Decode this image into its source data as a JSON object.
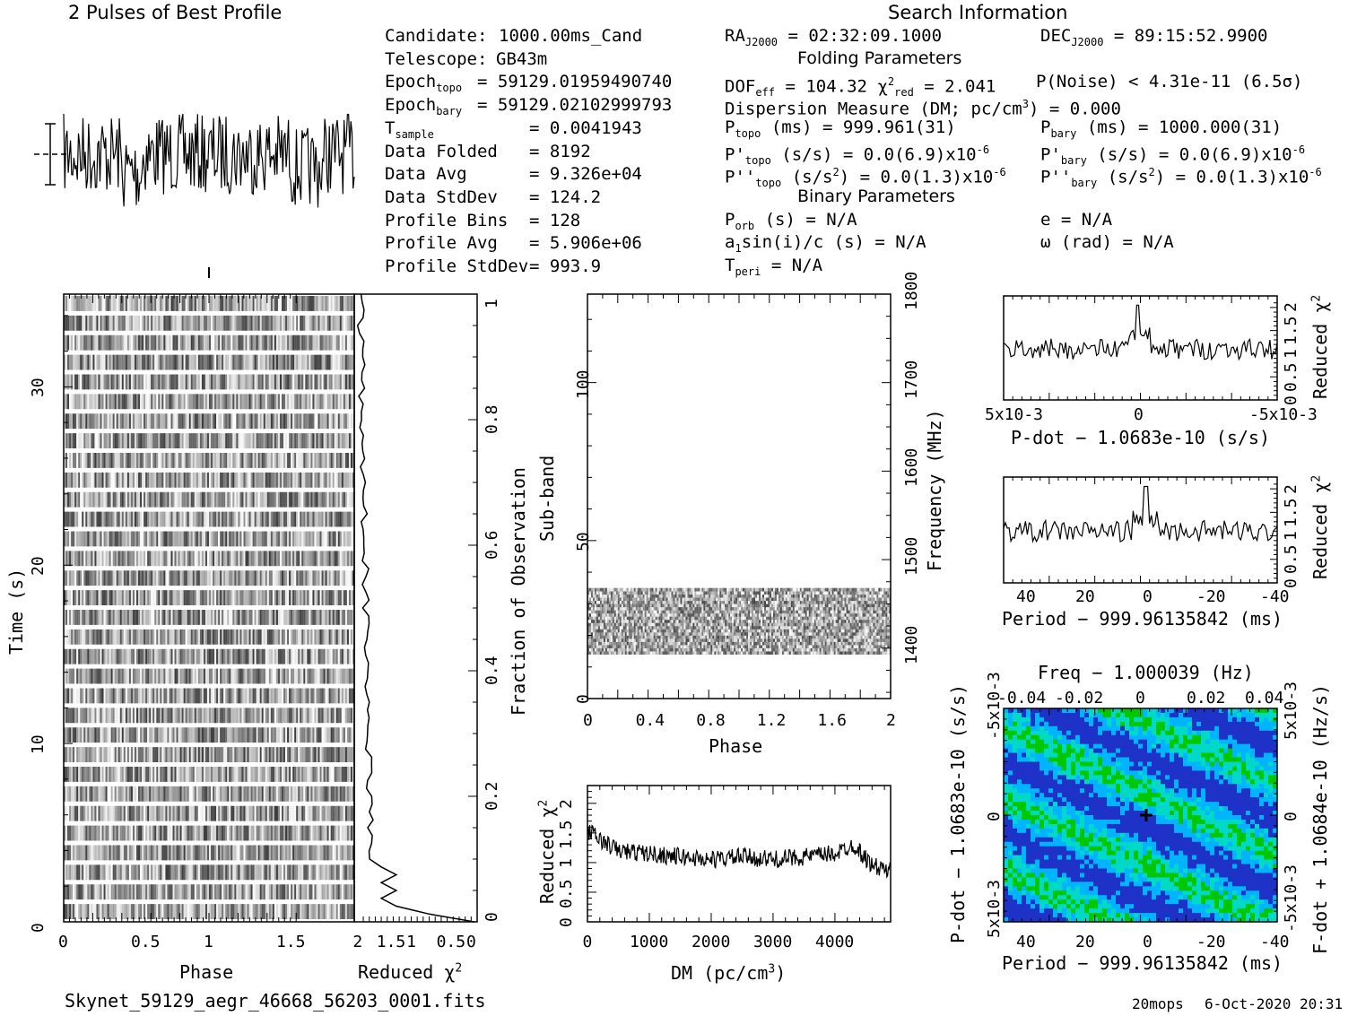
{
  "profile_title": "2 Pulses of Best Profile",
  "search_title": "Search Information",
  "info_col1": [
    {
      "label": "Candidate:",
      "value": "1000.00ms_Cand"
    },
    {
      "label": "Telescope:",
      "value": "GB43m"
    },
    {
      "label": "Epoch",
      "sub": "topo",
      "value": "= 59129.01959490740"
    },
    {
      "label": "Epoch",
      "sub": "bary",
      "value": "= 59129.02102999793"
    },
    {
      "label": "T",
      "sub": "sample",
      "value": "=  0.0041943"
    },
    {
      "label": "Data Folded",
      "value": "=  8192"
    },
    {
      "label": "Data Avg",
      "value": "=  9.326e+04"
    },
    {
      "label": "Data StdDev",
      "value": "=  124.2"
    },
    {
      "label": "Profile Bins",
      "value": "=  128"
    },
    {
      "label": "Profile Avg",
      "value": "=  5.906e+06"
    },
    {
      "label": "Profile StdDev",
      "value": "=  993.9"
    }
  ],
  "ra_label": "RA",
  "ra_sub": "J2000",
  "ra_value": "= 02:32:09.1000",
  "dec_label": "DEC",
  "dec_sub": "J2000",
  "dec_value": "= 89:15:52.9900",
  "folding_title": "Folding Parameters",
  "dof_line": "DOF",
  "dof_sub": "eff",
  "dof_value": "= 104.32",
  "chi_label": "χ",
  "chi_sub": "red",
  "chi_value": "= 2.041",
  "pnoise": "P(Noise) < 4.31e-11  (6.5σ)",
  "dm_line": "Dispersion Measure (DM; pc/cm",
  "dm_line_end": ") = 0.000",
  "ptopo": "(ms) =  999.961(31)",
  "pbary": "(ms) =  1000.000(31)",
  "pdot_topo": "(s/s) = 0.0(6.9)x10",
  "pdot_bary": "(s/s) = 0.0(6.9)x10",
  "pddot_topo": "(s/s",
  "pddot_topo_end": ") = 0.0(1.3)x10",
  "pddot_bary": "(s/s",
  "pddot_bary_end": ") = 0.0(1.3)x10",
  "exp_minus6": "-6",
  "binary_title": "Binary Parameters",
  "porb": "(s) = N/A",
  "a1": "sin(i)/c (s) = N/A",
  "tperi": "= N/A",
  "ecc": "e = N/A",
  "omega": "ω (rad) = N/A",
  "phase_label": "Phase",
  "time_label": "Time (s)",
  "redchi_label": "Reduced χ",
  "frac_obs_label": "Fraction of Observation",
  "subband_label": "Sub-band",
  "freq_label": "Frequency (MHz)",
  "dm_axis_label": "DM (pc/cm",
  "pdot_axis_label": "P-dot − 1.0683e-10 (s/s)",
  "period_axis_label": "Period − 999.96135842 (ms)",
  "freq_axis_label": "Freq − 1.000039 (Hz)",
  "pdot_left_label": "P-dot − 1.0683e-10 (s/s)",
  "fdot_right_label": "F-dot + 1.0684e-10 (Hz/s)",
  "filename": "Skynet_59129_aegr_46668_56203_0001.fits",
  "footer_user": "20mops",
  "footer_date": "6-Oct-2020 20:31",
  "chart_data": [
    {
      "type": "line",
      "title": "2 Pulses of Best Profile",
      "xlim": [
        0,
        2
      ],
      "note_values": "noisy profile, no clear pulse"
    },
    {
      "type": "heatmap",
      "xlabel": "Phase",
      "ylabel": "Time (s)",
      "xlim": [
        0,
        2
      ],
      "ylim": [
        0,
        33
      ],
      "xticks": [
        "0",
        "0.5",
        "1",
        "1.5"
      ],
      "yticks": [
        "0",
        "10",
        "20",
        "30"
      ]
    },
    {
      "type": "line",
      "xlabel": "Reduced χ2",
      "ylabel": "Fraction of Observation",
      "xticks": [
        "2",
        "1.5",
        "1",
        "0.5",
        "0"
      ],
      "yticks": [
        "0",
        "0.2",
        "0.4",
        "0.6",
        "0.8",
        "1"
      ],
      "x": [
        0.05,
        1.4,
        1.55,
        1.6,
        1.5,
        1.7,
        1.75,
        1.7,
        1.8,
        1.9,
        1.9,
        1.95,
        1.95
      ],
      "y": [
        0.0,
        0.03,
        0.06,
        0.09,
        0.13,
        0.2,
        0.3,
        0.4,
        0.5,
        0.6,
        0.7,
        0.85,
        1.0
      ]
    },
    {
      "type": "heatmap",
      "xlabel": "Phase",
      "ylabel": "Sub-band",
      "y2label": "Frequency (MHz)",
      "xlim": [
        0,
        2
      ],
      "ylim": [
        0,
        128
      ],
      "xticks": [
        "0",
        "0.4",
        "0.8",
        "1.2",
        "1.6",
        "2"
      ],
      "yticks": [
        "0",
        "50",
        "100"
      ],
      "y2ticks": [
        "1400",
        "1500",
        "1600",
        "1700",
        "1800"
      ],
      "filled_subbands": [
        14,
        35
      ]
    },
    {
      "type": "line",
      "xlabel": "DM (pc/cm3)",
      "ylabel": "Reduced χ2",
      "xticks": [
        "0",
        "1000",
        "2000",
        "3000",
        "4000"
      ],
      "yticks": [
        "0",
        "0.5",
        "1",
        "1.5",
        "2"
      ],
      "x": [
        0,
        250,
        500,
        1000,
        1500,
        2000,
        2500,
        3000,
        3500,
        4000,
        4300,
        4600,
        4900
      ],
      "y": [
        1.55,
        1.35,
        1.2,
        1.15,
        1.1,
        1.05,
        1.1,
        1.05,
        1.1,
        1.15,
        1.3,
        0.95,
        0.85
      ]
    },
    {
      "type": "line",
      "xlabel": "P-dot − 1.0683e-10 (s/s)",
      "ylabel": "Reduced χ2",
      "xticks": [
        "5x10-3",
        "0",
        "-5x10-3"
      ],
      "yticks": [
        "0",
        "0.5",
        "1",
        "1.5",
        "2"
      ],
      "x": [
        0.005,
        0.0035,
        0.002,
        0.0005,
        0,
        -0.0005,
        -0.002,
        -0.0035,
        -0.005
      ],
      "y": [
        1.2,
        1.1,
        1.0,
        1.2,
        2.0,
        1.4,
        1.1,
        1.0,
        1.1
      ]
    },
    {
      "type": "line",
      "xlabel": "Period − 999.96135842 (ms)",
      "ylabel": "Reduced χ2",
      "xticks": [
        "40",
        "20",
        "0",
        "-20",
        "-40"
      ],
      "yticks": [
        "0",
        "0.5",
        "1",
        "1.5",
        "2"
      ],
      "x": [
        48,
        40,
        30,
        20,
        10,
        0,
        -10,
        -20,
        -30,
        -42
      ],
      "y": [
        1.1,
        1.2,
        1.05,
        1.2,
        1.1,
        2.0,
        1.5,
        1.3,
        1.4,
        1.3
      ]
    },
    {
      "type": "heatmap",
      "xlabel": "Period − 999.96135842 (ms)",
      "ylabel": "P-dot − 1.0683e-10 (s/s)",
      "x2label": "Freq − 1.000039 (Hz)",
      "y2label": "F-dot + 1.0684e-10 (Hz/s)",
      "xticks": [
        "40",
        "20",
        "0",
        "-20",
        "-40"
      ],
      "x2ticks": [
        "-0.04",
        "-0.02",
        "0",
        "0.02",
        "0.04"
      ],
      "yticks": [
        "5x10-3",
        "0",
        "-5x10-3"
      ],
      "y2ticks": [
        "-5x10-3",
        "0",
        "5x10-3"
      ],
      "colors": [
        "#00d7ff",
        "#1e2dc8",
        "#00c800"
      ]
    }
  ]
}
